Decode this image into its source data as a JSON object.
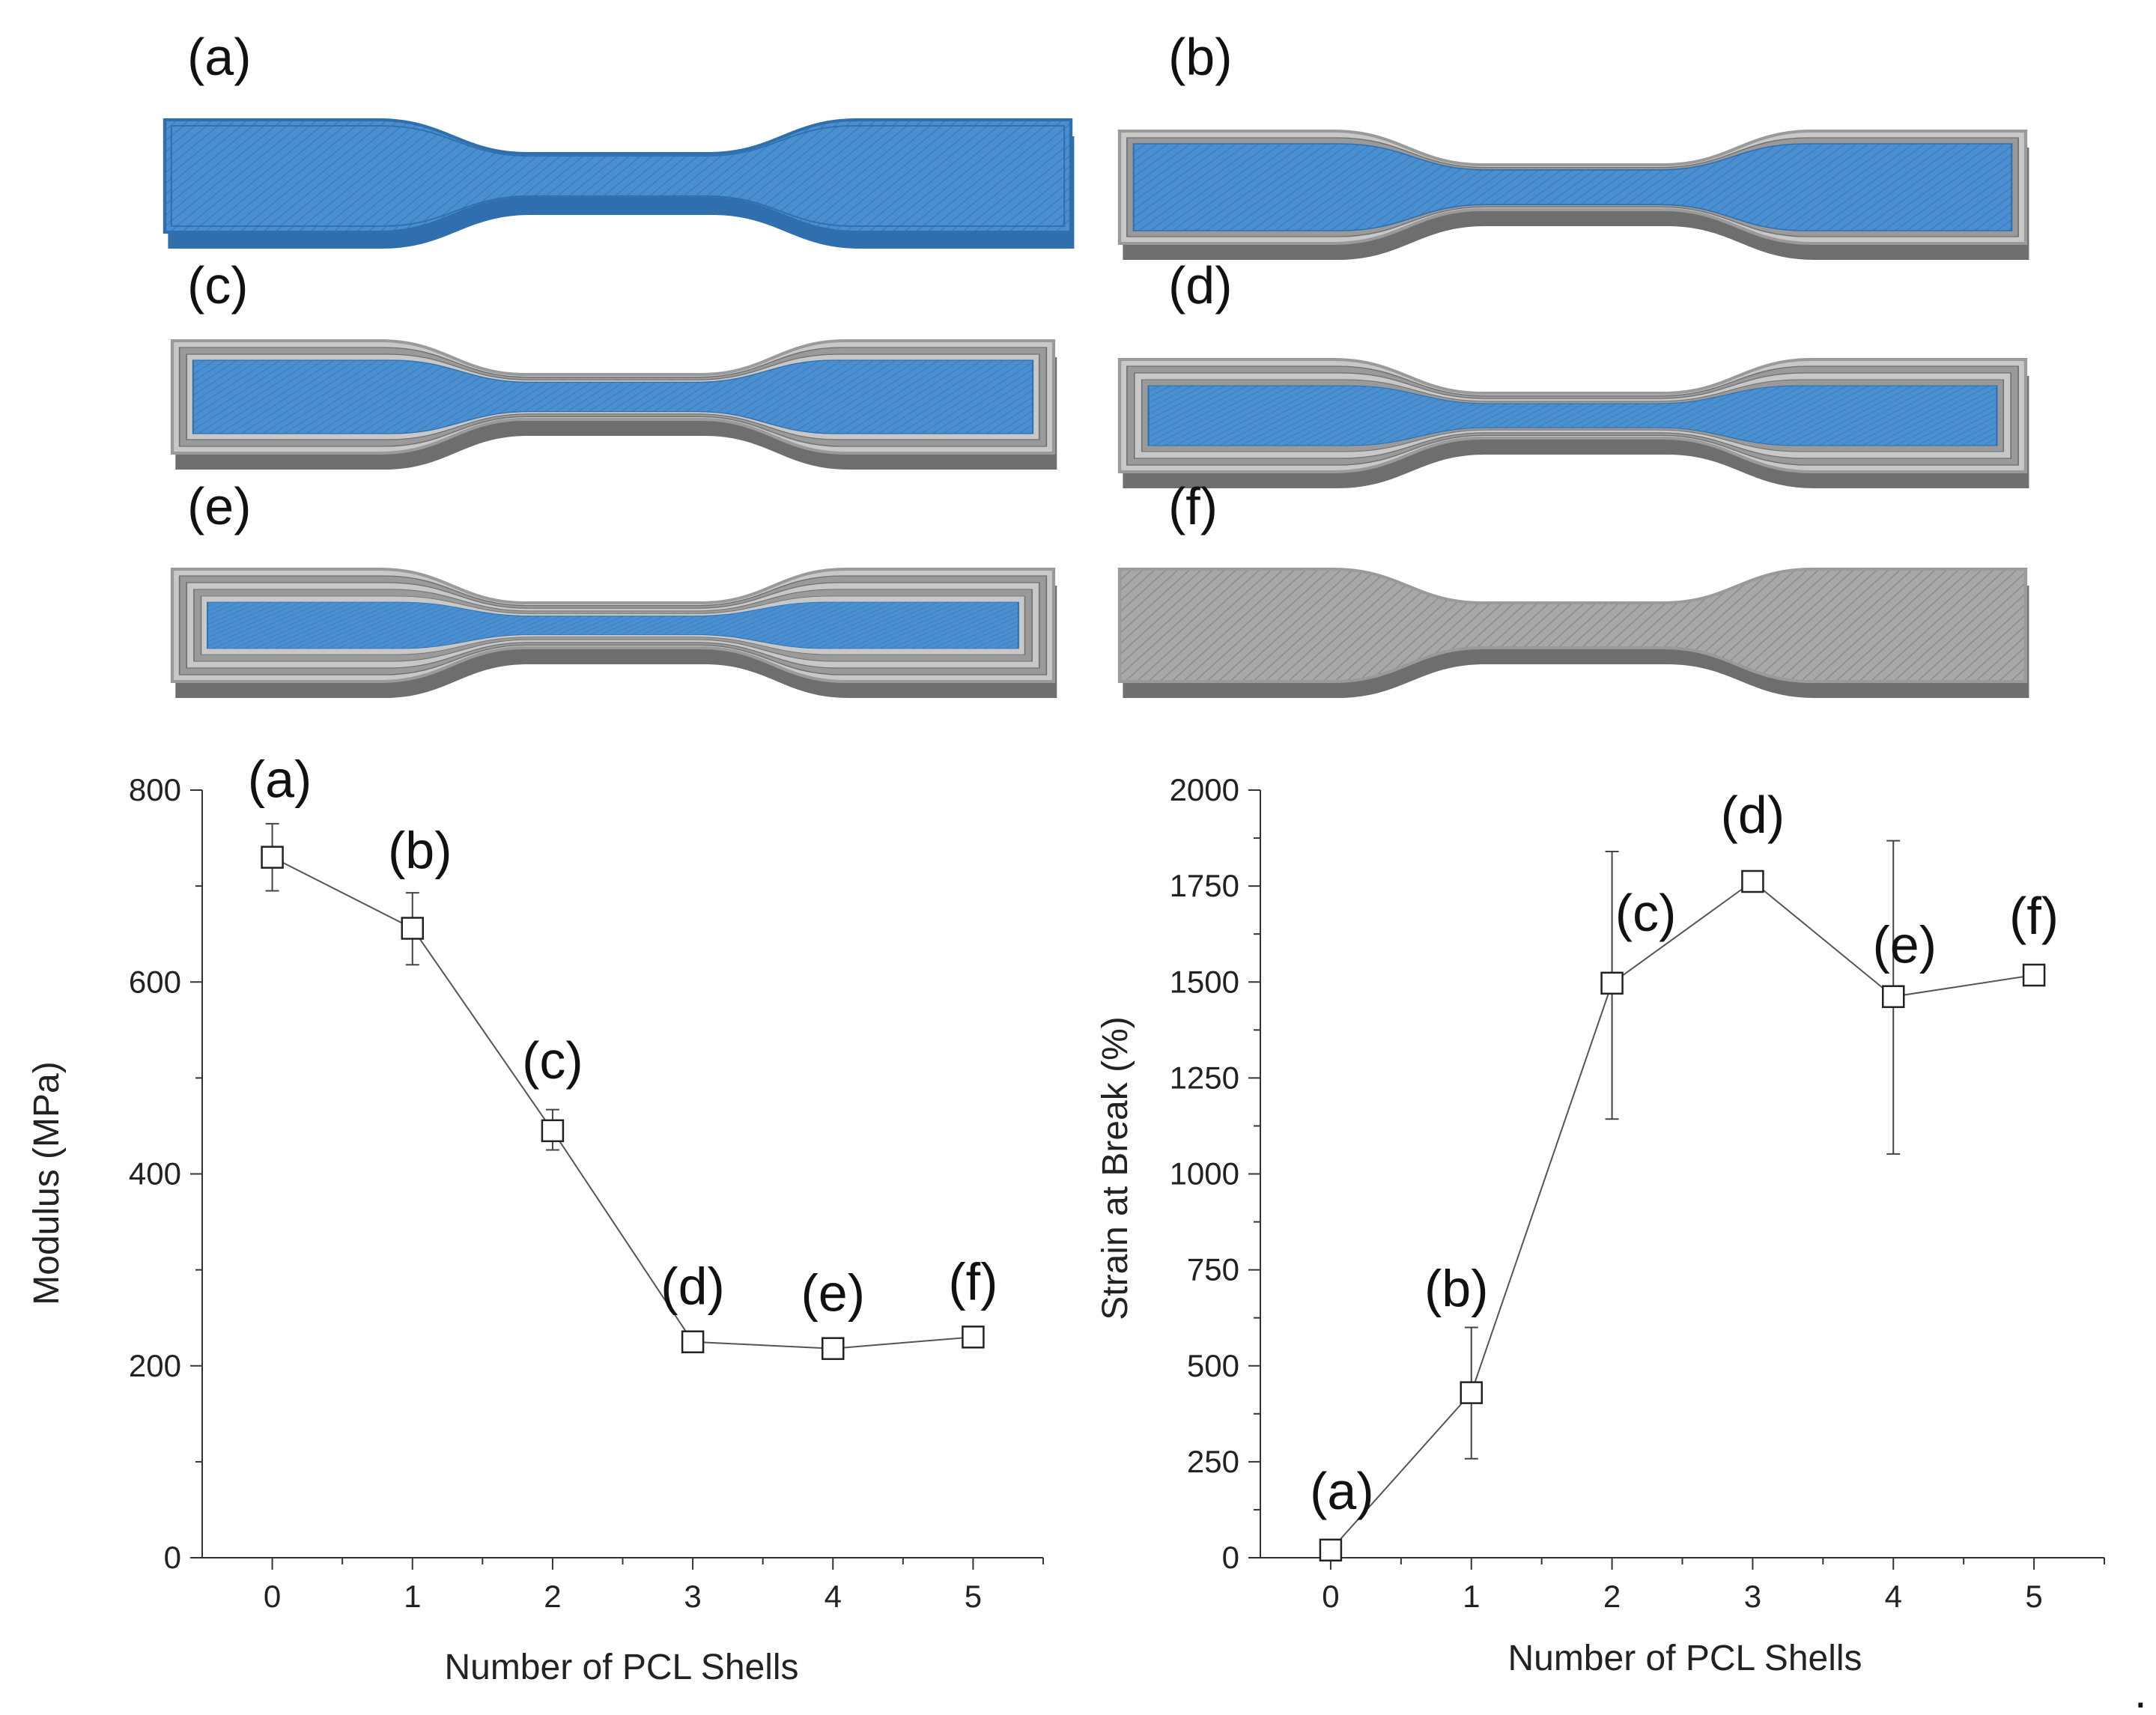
{
  "figure": {
    "specimen_labels": [
      "(a)",
      "(b)",
      "(c)",
      "(d)",
      "(e)",
      "(f)"
    ],
    "specimen_shell_counts": [
      0,
      1,
      2,
      3,
      4,
      5
    ],
    "colors": {
      "core_blue": "#4a8fd0",
      "core_blue_dark": "#2f6fae",
      "pcl_grey": "#9a9a9a",
      "pcl_grey_light": "#c8c8c8",
      "pcl_grey_dark": "#6e6e6e",
      "line": "#555555",
      "marker_edge": "#222222"
    },
    "trailing_mark": "."
  },
  "chart_data": [
    {
      "type": "line",
      "name": "modulus",
      "title": "",
      "xlabel": "Number of PCL Shells",
      "ylabel": "Modulus (MPa)",
      "x": [
        0,
        1,
        2,
        3,
        4,
        5
      ],
      "values": [
        730,
        656,
        445,
        225,
        218,
        230
      ],
      "err_low": [
        695,
        618,
        425,
        215,
        210,
        222
      ],
      "err_high": [
        765,
        693,
        467,
        235,
        227,
        238
      ],
      "point_labels": [
        "(a)",
        "(b)",
        "(c)",
        "(d)",
        "(e)",
        "(f)"
      ],
      "xlim": [
        -0.5,
        5.5
      ],
      "ylim": [
        0,
        800
      ],
      "xticks": [
        "0",
        "1",
        "2",
        "3",
        "4",
        "5"
      ],
      "yticks": [
        "0",
        "200",
        "400",
        "600",
        "800"
      ],
      "legend": "none",
      "grid": false
    },
    {
      "type": "line",
      "name": "strain",
      "title": "",
      "xlabel": "Number of PCL Shells",
      "ylabel": "Strain at Break (%)",
      "x": [
        0,
        1,
        2,
        3,
        4,
        5
      ],
      "values": [
        20,
        430,
        1497,
        1762,
        1462,
        1518
      ],
      "err_low": [
        0,
        258,
        1143,
        1738,
        1052,
        1505
      ],
      "err_high": [
        45,
        600,
        1840,
        1785,
        1868,
        1530
      ],
      "point_labels": [
        "(a)",
        "(b)",
        "(c)",
        "(d)",
        "(e)",
        "(f)"
      ],
      "xlim": [
        -0.5,
        5.5
      ],
      "ylim": [
        0,
        2000
      ],
      "xticks": [
        "0",
        "1",
        "2",
        "3",
        "4",
        "5"
      ],
      "yticks": [
        "0",
        "250",
        "500",
        "750",
        "1000",
        "1250",
        "1500",
        "1750",
        "2000"
      ],
      "legend": "none",
      "grid": false
    }
  ]
}
